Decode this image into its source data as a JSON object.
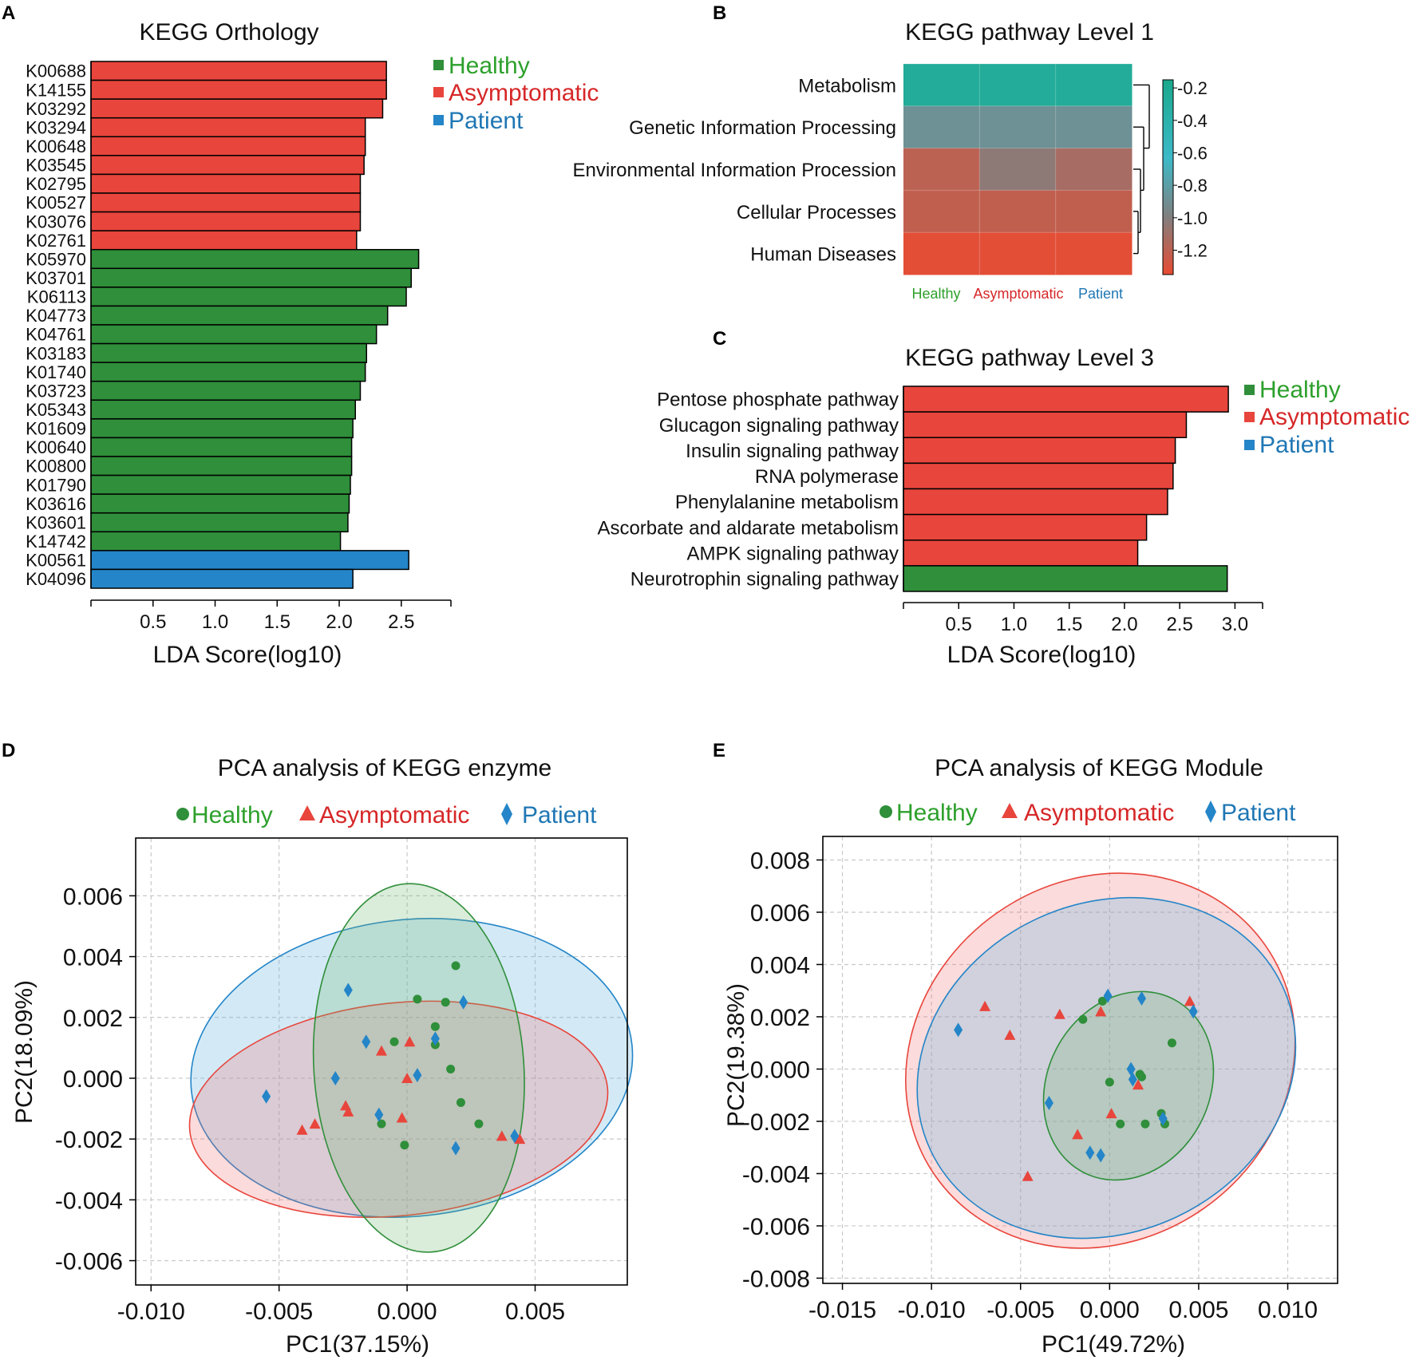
{
  "colors": {
    "healthy": "#2f8f3a",
    "asymptomatic": "#e8453c",
    "patient": "#2485c8",
    "healthy_text": "#2da02c",
    "asymptomatic_text": "#d62728",
    "patient_text": "#1f77b4"
  },
  "legend": {
    "healthy": "Healthy",
    "asymptomatic": "Asymptomatic",
    "patient": "Patient"
  },
  "panels": {
    "A": {
      "letter": "A"
    },
    "B": {
      "letter": "B"
    },
    "C": {
      "letter": "C"
    },
    "D": {
      "letter": "D"
    },
    "E": {
      "letter": "E"
    }
  },
  "chart_data": [
    {
      "id": "A",
      "type": "bar",
      "orientation": "horizontal",
      "title": "KEGG Orthology",
      "xlabel": "LDA Score(log10)",
      "xlim": [
        0,
        2.9
      ],
      "xticks": [
        0.5,
        1.0,
        1.5,
        2.0,
        2.5
      ],
      "xtick_labels": [
        "0.5",
        "1.0",
        "1.5",
        "2.0",
        "2.5"
      ],
      "categories": [
        "K00688",
        "K14155",
        "K03292",
        "K03294",
        "K00648",
        "K03545",
        "K02795",
        "K00527",
        "K03076",
        "K02761",
        "K05970",
        "K03701",
        "K06113",
        "K04773",
        "K04761",
        "K03183",
        "K01740",
        "K03723",
        "K05343",
        "K01609",
        "K00640",
        "K00800",
        "K01790",
        "K03616",
        "K03601",
        "K14742",
        "K00561",
        "K04096"
      ],
      "values": [
        2.38,
        2.38,
        2.35,
        2.21,
        2.21,
        2.2,
        2.17,
        2.17,
        2.17,
        2.14,
        2.64,
        2.58,
        2.54,
        2.39,
        2.3,
        2.22,
        2.21,
        2.17,
        2.13,
        2.11,
        2.1,
        2.1,
        2.09,
        2.08,
        2.07,
        2.01,
        2.56,
        2.11
      ],
      "groups": [
        "asymptomatic",
        "asymptomatic",
        "asymptomatic",
        "asymptomatic",
        "asymptomatic",
        "asymptomatic",
        "asymptomatic",
        "asymptomatic",
        "asymptomatic",
        "asymptomatic",
        "healthy",
        "healthy",
        "healthy",
        "healthy",
        "healthy",
        "healthy",
        "healthy",
        "healthy",
        "healthy",
        "healthy",
        "healthy",
        "healthy",
        "healthy",
        "healthy",
        "healthy",
        "healthy",
        "patient",
        "patient"
      ],
      "legend": [
        "Healthy",
        "Asymptomatic",
        "Patient"
      ]
    },
    {
      "id": "B",
      "type": "heatmap",
      "title": "KEGG pathway Level 1",
      "rows": [
        "Metabolism",
        "Genetic Information Processing",
        "Environmental Information Procession",
        "Cellular Processes",
        "Human Diseases"
      ],
      "columns": [
        "Healthy",
        "Asymptomatic",
        "Patient"
      ],
      "values": [
        [
          -0.25,
          -0.25,
          -0.25
        ],
        [
          -0.85,
          -0.85,
          -0.85
        ],
        [
          -1.18,
          -1.0,
          -1.1
        ],
        [
          -1.2,
          -1.2,
          -1.2
        ],
        [
          -1.33,
          -1.33,
          -1.33
        ]
      ],
      "colorbar": {
        "ticks": [
          -0.2,
          -0.4,
          -0.6,
          -0.8,
          -1.0,
          -1.2
        ],
        "tick_labels": [
          "-0.2",
          "-0.4",
          "-0.6",
          "-0.8",
          "-1.0",
          "-1.2"
        ],
        "range": [
          -0.15,
          -1.35
        ]
      },
      "dendrogram": "rows"
    },
    {
      "id": "C",
      "type": "bar",
      "orientation": "horizontal",
      "title": "KEGG pathway Level 3",
      "xlabel": "LDA Score(log10)",
      "xlim": [
        0,
        3.25
      ],
      "xticks": [
        0.5,
        1.0,
        1.5,
        2.0,
        2.5,
        3.0
      ],
      "xtick_labels": [
        "0.5",
        "1.0",
        "1.5",
        "2.0",
        "2.5",
        "3.0"
      ],
      "categories": [
        "Pentose phosphate pathway",
        "Glucagon signaling pathway",
        "Insulin signaling pathway",
        "RNA polymerase",
        "Phenylalanine metabolism",
        "Ascorbate and aldarate metabolism",
        "AMPK signaling pathway",
        "Neurotrophin signaling pathway"
      ],
      "values": [
        2.94,
        2.56,
        2.46,
        2.44,
        2.39,
        2.2,
        2.12,
        2.93
      ],
      "groups": [
        "asymptomatic",
        "asymptomatic",
        "asymptomatic",
        "asymptomatic",
        "asymptomatic",
        "asymptomatic",
        "asymptomatic",
        "healthy"
      ],
      "legend": [
        "Healthy",
        "Asymptomatic",
        "Patient"
      ]
    },
    {
      "id": "D",
      "type": "scatter",
      "title": "PCA analysis of KEGG enzyme",
      "xlabel": "PC1(37.15%)",
      "ylabel": "PC2(18.09%)",
      "xlim": [
        -0.0106,
        0.0086
      ],
      "ylim": [
        -0.0068,
        0.0079
      ],
      "xticks": [
        -0.01,
        -0.005,
        0.0,
        0.005
      ],
      "xtick_labels": [
        "-0.010",
        "-0.005",
        "0.000",
        "0.005"
      ],
      "yticks": [
        0.006,
        0.004,
        0.002,
        0.0,
        -0.002,
        -0.004,
        -0.006
      ],
      "ytick_labels": [
        "0.006",
        "0.004",
        "0.002",
        "0.000",
        "-0.002",
        "-0.004",
        "-0.006"
      ],
      "grid": true,
      "ellipses": [
        {
          "group": "patient",
          "cx": 0.00018,
          "cy": 0.00034,
          "rx": 0.00865,
          "ry": 0.00488,
          "angle": -6
        },
        {
          "group": "asymptomatic",
          "cx": -0.00033,
          "cy": -0.00102,
          "rx": 0.0082,
          "ry": 0.0035,
          "angle": -6
        },
        {
          "group": "healthy",
          "cx": 0.00046,
          "cy": 0.00034,
          "rx": 0.0041,
          "ry": 0.00607,
          "angle": -4
        }
      ],
      "series": [
        {
          "name": "Healthy",
          "group": "healthy",
          "marker": "circle",
          "points": [
            [
              0.0019,
              0.0037
            ],
            [
              0.0004,
              0.0026
            ],
            [
              0.0015,
              0.0025
            ],
            [
              0.0011,
              0.0017
            ],
            [
              -0.0005,
              0.0012
            ],
            [
              0.0011,
              0.0011
            ],
            [
              0.0017,
              0.0003
            ],
            [
              0.0021,
              -0.0008
            ],
            [
              0.0028,
              -0.0015
            ],
            [
              -0.001,
              -0.0015
            ],
            [
              -0.0001,
              -0.0022
            ]
          ]
        },
        {
          "name": "Asymptomatic",
          "group": "asymptomatic",
          "marker": "triangle",
          "points": [
            [
              -0.001,
              0.0009
            ],
            [
              0.0001,
              0.0012
            ],
            [
              0.0,
              0.0
            ],
            [
              -0.0024,
              -0.0009
            ],
            [
              -0.0023,
              -0.0011
            ],
            [
              -0.0002,
              -0.0013
            ],
            [
              -0.0041,
              -0.0017
            ],
            [
              -0.0036,
              -0.0015
            ],
            [
              0.0037,
              -0.0019
            ],
            [
              0.0044,
              -0.002
            ]
          ]
        },
        {
          "name": "Patient",
          "group": "patient",
          "marker": "diamond",
          "points": [
            [
              -0.0023,
              0.0029
            ],
            [
              0.0022,
              0.0025
            ],
            [
              0.0011,
              0.0013
            ],
            [
              -0.0016,
              0.0012
            ],
            [
              0.0004,
              0.0001
            ],
            [
              -0.0028,
              0.0
            ],
            [
              -0.0055,
              -0.0006
            ],
            [
              -0.0011,
              -0.0012
            ],
            [
              0.0019,
              -0.0023
            ],
            [
              0.0042,
              -0.0019
            ]
          ]
        }
      ]
    },
    {
      "id": "E",
      "type": "scatter",
      "title": "PCA analysis of KEGG Module",
      "xlabel": "PC1(49.72%)",
      "ylabel": "PC2(19.38%)",
      "xlim": [
        -0.0161,
        0.0128
      ],
      "ylim": [
        -0.0082,
        0.0089
      ],
      "xticks": [
        -0.015,
        -0.01,
        -0.005,
        0.0,
        0.005,
        0.01
      ],
      "xtick_labels": [
        "-0.015",
        "-0.010",
        "-0.005",
        "0.000",
        "0.005",
        "0.010"
      ],
      "yticks": [
        0.008,
        0.006,
        0.004,
        0.002,
        0.0,
        -0.002,
        -0.004,
        -0.006,
        -0.008
      ],
      "ytick_labels": [
        "0.008",
        "0.006",
        "0.004",
        "0.002",
        "0.000",
        "-0.002",
        "-0.004",
        "-0.006",
        "-0.008"
      ],
      "grid": true,
      "ellipses": [
        {
          "group": "asymptomatic",
          "cx": -0.00052,
          "cy": 0.00032,
          "rx": 0.0113,
          "ry": 0.0069,
          "angle": -35
        },
        {
          "group": "patient",
          "cx": -0.00018,
          "cy": 4e-05,
          "rx": 0.0109,
          "ry": 0.0063,
          "angle": -25
        },
        {
          "group": "healthy",
          "cx": 0.00106,
          "cy": -0.00064,
          "rx": 0.00548,
          "ry": 0.0031,
          "angle": -62
        }
      ],
      "series": [
        {
          "name": "Healthy",
          "group": "healthy",
          "marker": "circle",
          "points": [
            [
              -0.0004,
              0.0026
            ],
            [
              -0.0015,
              0.0019
            ],
            [
              0.0035,
              0.001
            ],
            [
              0.0018,
              -0.0003
            ],
            [
              0.0017,
              -0.0002
            ],
            [
              0.0,
              -0.0005
            ],
            [
              0.0029,
              -0.0017
            ],
            [
              0.0031,
              -0.0021
            ],
            [
              0.0006,
              -0.0021
            ],
            [
              0.002,
              -0.0021
            ]
          ]
        },
        {
          "name": "Asymptomatic",
          "group": "asymptomatic",
          "marker": "triangle",
          "points": [
            [
              -0.007,
              0.0024
            ],
            [
              -0.0056,
              0.0013
            ],
            [
              -0.0028,
              0.0021
            ],
            [
              -0.0005,
              0.0022
            ],
            [
              0.0045,
              0.0026
            ],
            [
              0.0016,
              -0.0006
            ],
            [
              0.0001,
              -0.0017
            ],
            [
              -0.0018,
              -0.0025
            ],
            [
              -0.0046,
              -0.0041
            ]
          ]
        },
        {
          "name": "Patient",
          "group": "patient",
          "marker": "diamond",
          "points": [
            [
              -0.0085,
              0.0015
            ],
            [
              -0.0001,
              0.0028
            ],
            [
              0.0018,
              0.0027
            ],
            [
              0.0047,
              0.0022
            ],
            [
              0.0012,
              0.0
            ],
            [
              0.0013,
              -0.0004
            ],
            [
              -0.0034,
              -0.0013
            ],
            [
              0.003,
              -0.0019
            ],
            [
              -0.0011,
              -0.0032
            ],
            [
              -0.0005,
              -0.0033
            ]
          ]
        }
      ]
    }
  ]
}
